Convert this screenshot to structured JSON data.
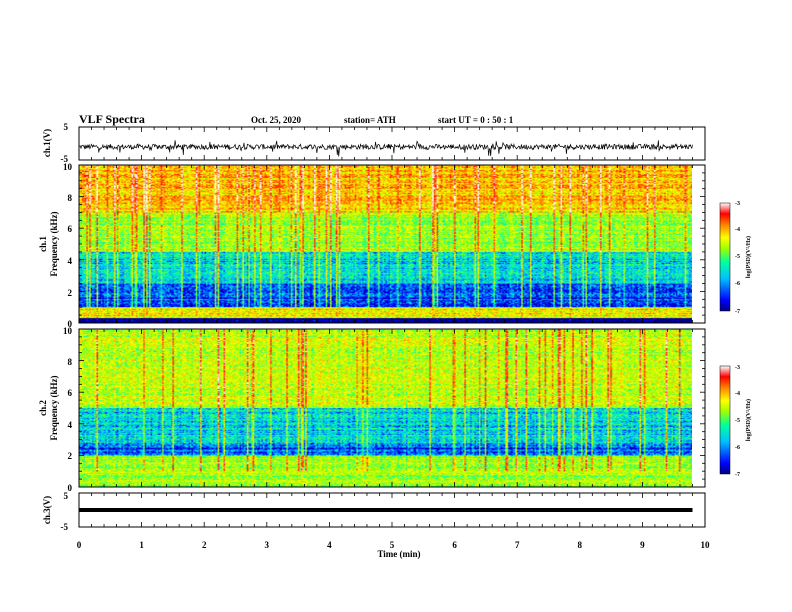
{
  "header": {
    "title": "VLF Spectra",
    "date": "Oct. 25, 2020",
    "station": "station= ATH",
    "start": "start  UT =   0 : 50 : 1"
  },
  "panels": {
    "ch1v": {
      "ylabel": "ch.1(V)",
      "ticks": [
        "5",
        "-5"
      ]
    },
    "spec1": {
      "ylabel_channel": "ch.1",
      "ylabel": "Frequency (kHz)",
      "ticks": [
        "0",
        "2",
        "4",
        "6",
        "8",
        "10"
      ]
    },
    "spec2": {
      "ylabel_channel": "ch.2",
      "ylabel": "Frequency (kHz)",
      "ticks": [
        "0",
        "2",
        "4",
        "6",
        "8",
        "10"
      ]
    },
    "ch3v": {
      "ylabel": "ch.3(V)",
      "ticks": [
        "5",
        "-5"
      ]
    }
  },
  "colorbars": {
    "label": "log(PSD)(V²/Hz)",
    "ticks": [
      "-3",
      "-4",
      "-5",
      "-6",
      "-7"
    ],
    "range": [
      -7,
      -3
    ],
    "colormap": [
      "#000080",
      "#0000ff",
      "#00c0ff",
      "#00ffa0",
      "#a0ff00",
      "#ffff00",
      "#ff8000",
      "#ff0000",
      "#ffffff"
    ]
  },
  "xaxis": {
    "label": "Time (min)",
    "ticks": [
      "0",
      "1",
      "2",
      "3",
      "4",
      "5",
      "6",
      "7",
      "8",
      "9",
      "10"
    ]
  },
  "chart_data": [
    {
      "type": "line",
      "name": "ch.1 waveform",
      "xlabel": "Time (min)",
      "ylabel": "ch.1(V)",
      "xlim": [
        0,
        10
      ],
      "ylim": [
        -5,
        5
      ],
      "data_extent_min": 9.8,
      "level_approx": -1,
      "spike_range": [
        -4,
        1
      ]
    },
    {
      "type": "heatmap",
      "name": "ch.1 spectrogram",
      "xlabel": "Time (min)",
      "ylabel": "Frequency (kHz)",
      "xlim": [
        0,
        10
      ],
      "ylim": [
        0,
        10
      ],
      "zlabel": "log(PSD)(V²/Hz)",
      "zlim": [
        -7,
        -3
      ],
      "bands": [
        {
          "freq_range": [
            0,
            0.3
          ],
          "log_psd": -7
        },
        {
          "freq_range": [
            0.3,
            1.0
          ],
          "log_psd": -4.5
        },
        {
          "freq_range": [
            1.0,
            2.5
          ],
          "log_psd": -6.3
        },
        {
          "freq_range": [
            2.5,
            4.5
          ],
          "log_psd": -5.8
        },
        {
          "freq_range": [
            4.5,
            7.0
          ],
          "log_psd": -5.0
        },
        {
          "freq_range": [
            7.0,
            10.0
          ],
          "log_psd": -4.3
        }
      ]
    },
    {
      "type": "heatmap",
      "name": "ch.2 spectrogram",
      "xlabel": "Time (min)",
      "ylabel": "Frequency (kHz)",
      "xlim": [
        0,
        10
      ],
      "ylim": [
        0,
        10
      ],
      "zlabel": "log(PSD)(V²/Hz)",
      "zlim": [
        -7,
        -3
      ],
      "bands": [
        {
          "freq_range": [
            0,
            2.0
          ],
          "log_psd": -5.0
        },
        {
          "freq_range": [
            2.0,
            2.7
          ],
          "log_psd": -6.3
        },
        {
          "freq_range": [
            2.7,
            5.0
          ],
          "log_psd": -5.8
        },
        {
          "freq_range": [
            5.0,
            10.0
          ],
          "log_psd": -4.8
        }
      ]
    },
    {
      "type": "line",
      "name": "ch.3 waveform",
      "xlabel": "Time (min)",
      "ylabel": "ch.3(V)",
      "xlim": [
        0,
        10
      ],
      "ylim": [
        -5,
        5
      ],
      "data_extent_min": 9.8,
      "level_approx": 0
    }
  ]
}
